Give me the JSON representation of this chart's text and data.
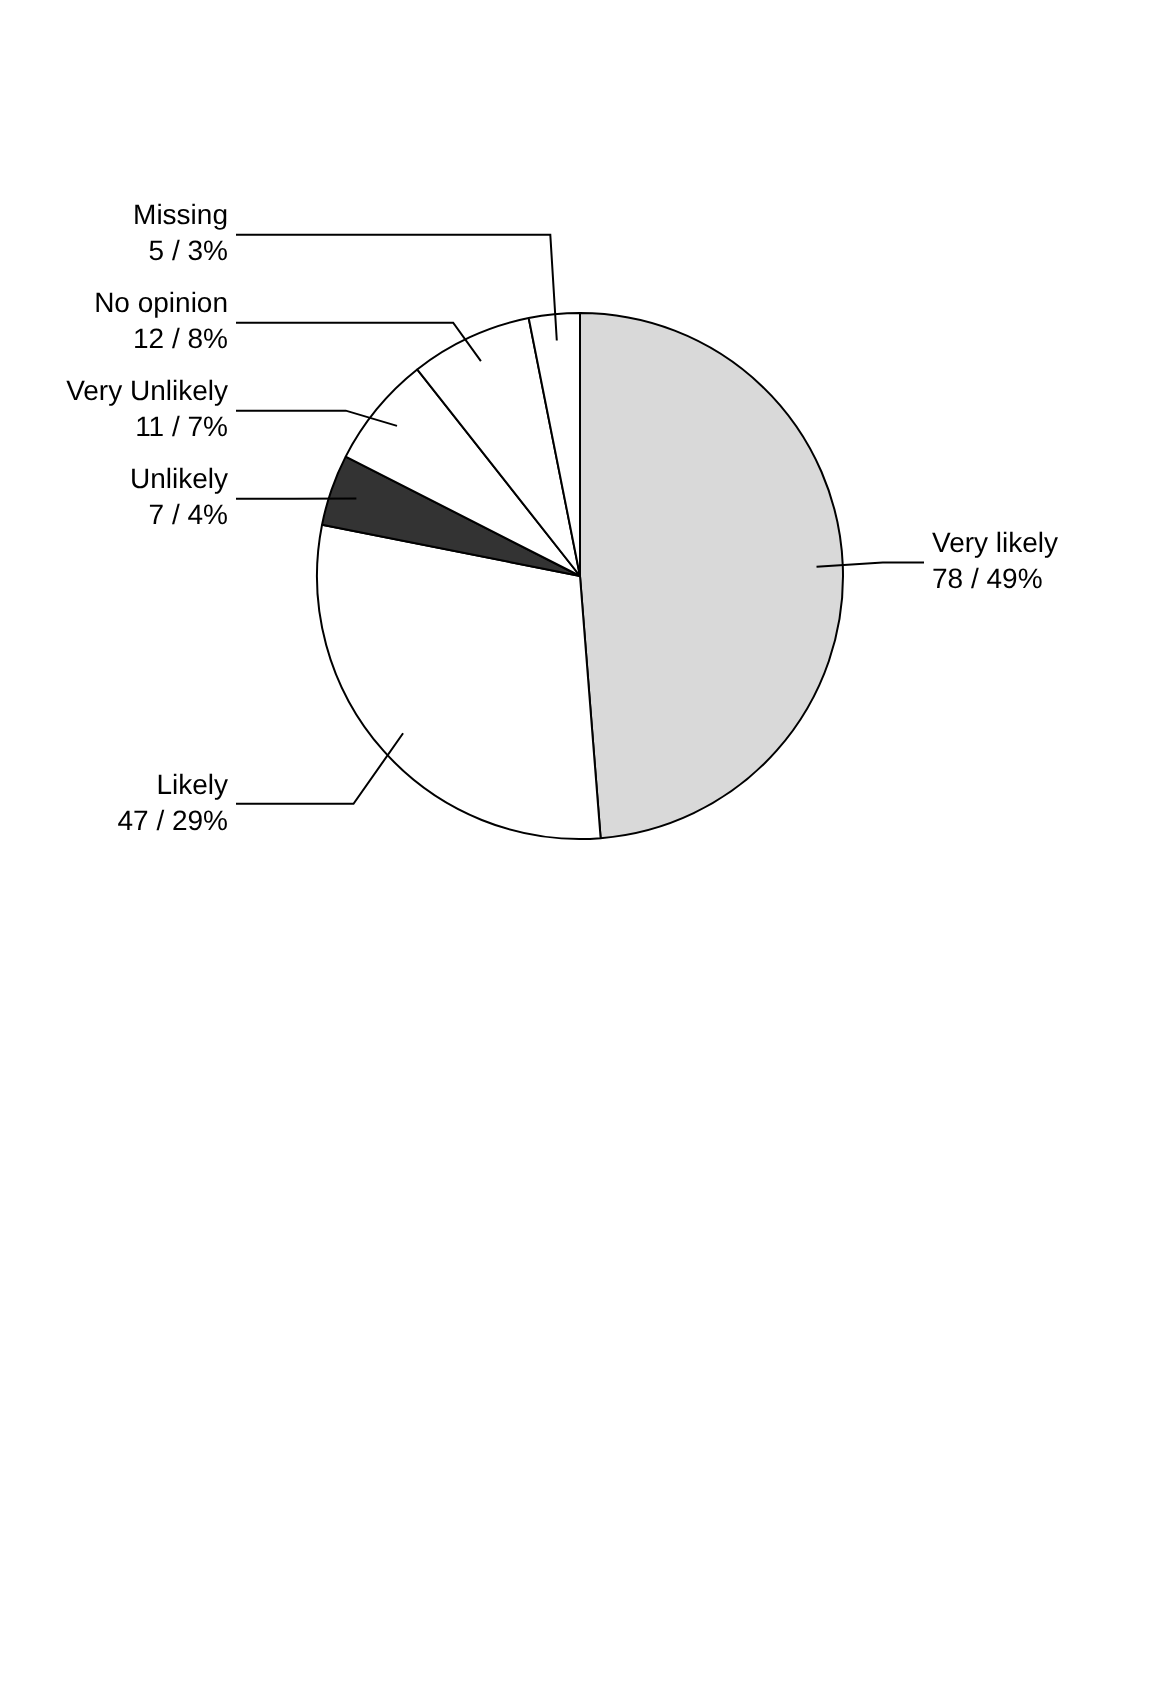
{
  "chart_data": {
    "type": "pie",
    "categories": [
      "Very likely",
      "Likely",
      "Unlikely",
      "Very Unlikely",
      "No opinion",
      "Missing"
    ],
    "values": [
      78,
      47,
      7,
      11,
      12,
      5
    ],
    "value_labels": [
      "78 / 49%",
      "47 / 29%",
      "7 / 4%",
      "11 / 7%",
      "12 / 8%",
      "5 / 3%"
    ],
    "colors": [
      "#d9d9d9",
      "#ffffff",
      "#333333",
      "#ffffff",
      "#ffffff",
      "#ffffff"
    ]
  }
}
